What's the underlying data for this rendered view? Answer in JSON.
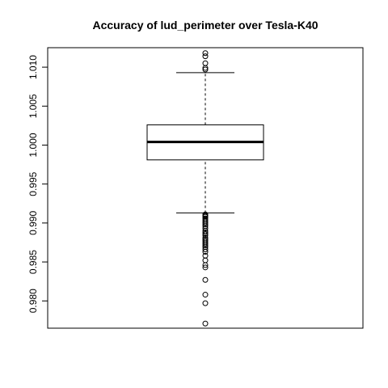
{
  "chart_data": {
    "type": "boxplot",
    "title": "Accuracy of lud_perimeter over Tesla-K40",
    "xlabel": "",
    "ylabel": "",
    "ylim": [
      0.9765,
      1.0125
    ],
    "y_ticks": [
      0.98,
      0.985,
      0.99,
      0.995,
      1.0,
      1.005,
      1.01
    ],
    "y_tick_labels": [
      "0.980",
      "0.985",
      "0.990",
      "0.995",
      "1.000",
      "1.005",
      "1.010"
    ],
    "grid": false,
    "legend": "none",
    "box": {
      "whisker_low": 0.9913,
      "q1": 0.9981,
      "median": 1.0004,
      "q3": 1.0026,
      "whisker_high": 1.0093
    },
    "outliers": [
      1.0118,
      1.0114,
      1.0105,
      1.0099,
      1.0097,
      0.9911,
      0.991,
      0.9909,
      0.9908,
      0.9906,
      0.9904,
      0.9902,
      0.99,
      0.9898,
      0.9896,
      0.9893,
      0.989,
      0.9888,
      0.9886,
      0.9884,
      0.9881,
      0.9879,
      0.9877,
      0.9875,
      0.9873,
      0.9871,
      0.9869,
      0.9866,
      0.9863,
      0.9858,
      0.9852,
      0.9846,
      0.9843,
      0.9827,
      0.9808,
      0.9797,
      0.9771
    ]
  }
}
